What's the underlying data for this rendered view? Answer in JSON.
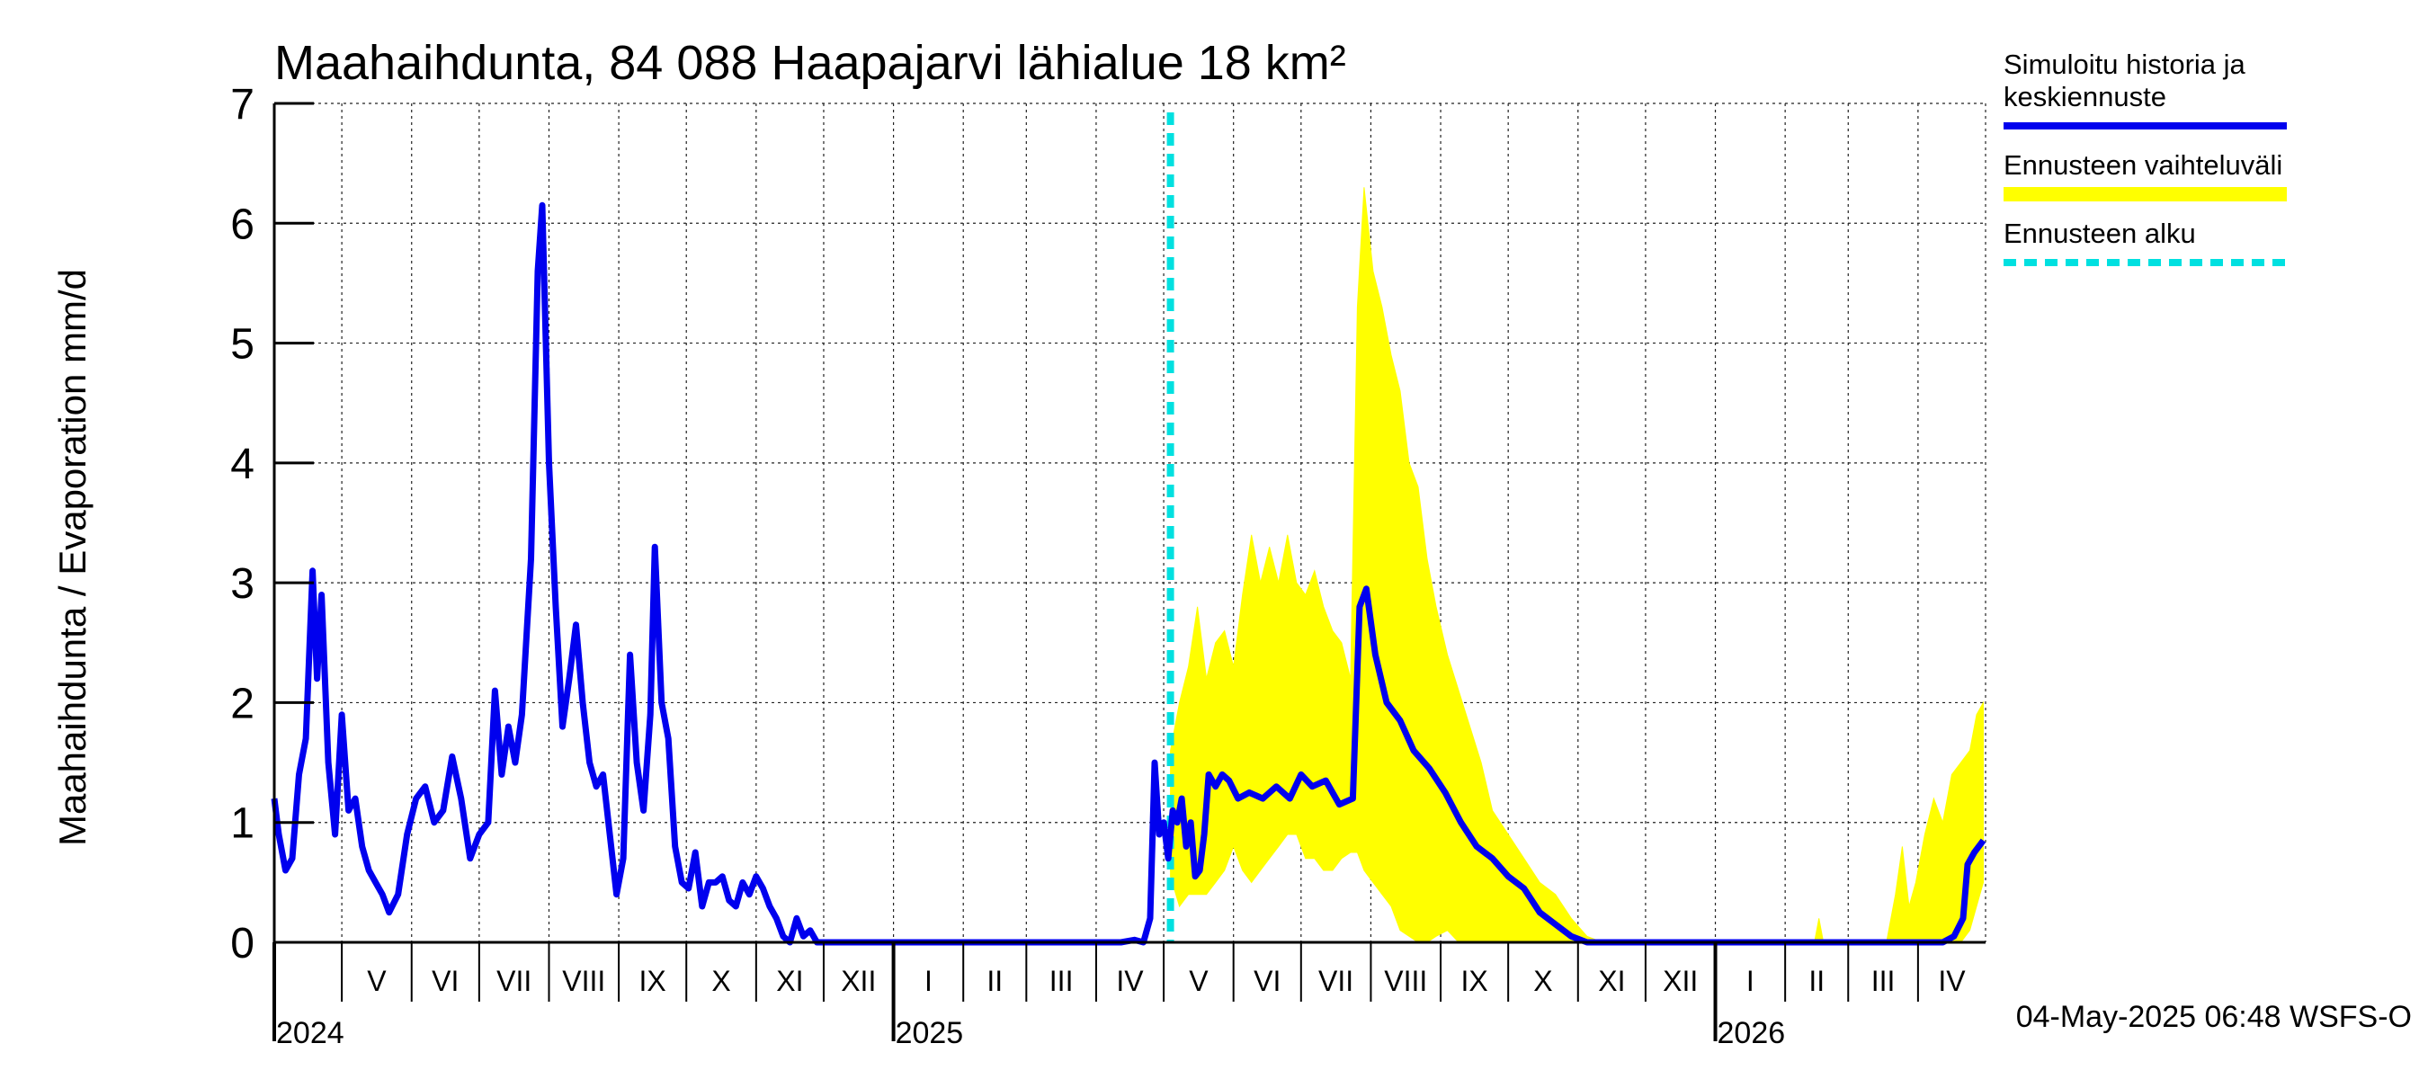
{
  "chart_data": {
    "type": "line",
    "title": "Maahaihdunta, 84 088 Haapajarvi lähialue 18 km²",
    "ylabel": "Maahaihdunta / Evaporation   mm/d",
    "ylim": [
      0,
      7
    ],
    "yticks": [
      "0",
      "1",
      "2",
      "3",
      "4",
      "5",
      "6",
      "7"
    ],
    "xlim": [
      "2024-04-01",
      "2026-05-01"
    ],
    "grid": true,
    "months": [
      {
        "label": "V",
        "start": "2024-05-01",
        "end": "2024-06-01"
      },
      {
        "label": "VI",
        "start": "2024-06-01",
        "end": "2024-07-01"
      },
      {
        "label": "VII",
        "start": "2024-07-01",
        "end": "2024-08-01"
      },
      {
        "label": "VIII",
        "start": "2024-08-01",
        "end": "2024-09-01"
      },
      {
        "label": "IX",
        "start": "2024-09-01",
        "end": "2024-10-01"
      },
      {
        "label": "X",
        "start": "2024-10-01",
        "end": "2024-11-01"
      },
      {
        "label": "XI",
        "start": "2024-11-01",
        "end": "2024-12-01"
      },
      {
        "label": "XII",
        "start": "2024-12-01",
        "end": "2025-01-01"
      },
      {
        "label": "I",
        "start": "2025-01-01",
        "end": "2025-02-01"
      },
      {
        "label": "II",
        "start": "2025-02-01",
        "end": "2025-03-01"
      },
      {
        "label": "III",
        "start": "2025-03-01",
        "end": "2025-04-01"
      },
      {
        "label": "IV",
        "start": "2025-04-01",
        "end": "2025-05-01"
      },
      {
        "label": "V",
        "start": "2025-05-01",
        "end": "2025-06-01"
      },
      {
        "label": "VI",
        "start": "2025-06-01",
        "end": "2025-07-01"
      },
      {
        "label": "VII",
        "start": "2025-07-01",
        "end": "2025-08-01"
      },
      {
        "label": "VIII",
        "start": "2025-08-01",
        "end": "2025-09-01"
      },
      {
        "label": "IX",
        "start": "2025-09-01",
        "end": "2025-10-01"
      },
      {
        "label": "X",
        "start": "2025-10-01",
        "end": "2025-11-01"
      },
      {
        "label": "XI",
        "start": "2025-11-01",
        "end": "2025-12-01"
      },
      {
        "label": "XII",
        "start": "2025-12-01",
        "end": "2026-01-01"
      },
      {
        "label": "I",
        "start": "2026-01-01",
        "end": "2026-02-01"
      },
      {
        "label": "II",
        "start": "2026-02-01",
        "end": "2026-03-01"
      },
      {
        "label": "III",
        "start": "2026-03-01",
        "end": "2026-04-01"
      },
      {
        "label": "IV",
        "start": "2026-04-01",
        "end": "2026-05-01"
      }
    ],
    "years": [
      {
        "label": "2024",
        "date": "2024-04-01"
      },
      {
        "label": "2025",
        "date": "2025-01-01"
      },
      {
        "label": "2026",
        "date": "2026-01-01"
      }
    ],
    "forecast_start": "2025-05-04",
    "series": [
      {
        "name": "Simuloitu historia ja keskiennuste",
        "color": "#0000ee",
        "points": [
          [
            "2024-04-01",
            1.2
          ],
          [
            "2024-04-03",
            0.9
          ],
          [
            "2024-04-06",
            0.6
          ],
          [
            "2024-04-09",
            0.7
          ],
          [
            "2024-04-12",
            1.4
          ],
          [
            "2024-04-15",
            1.7
          ],
          [
            "2024-04-18",
            3.1
          ],
          [
            "2024-04-20",
            2.2
          ],
          [
            "2024-04-22",
            2.9
          ],
          [
            "2024-04-25",
            1.5
          ],
          [
            "2024-04-28",
            0.9
          ],
          [
            "2024-05-01",
            1.9
          ],
          [
            "2024-05-04",
            1.1
          ],
          [
            "2024-05-07",
            1.2
          ],
          [
            "2024-05-10",
            0.8
          ],
          [
            "2024-05-13",
            0.6
          ],
          [
            "2024-05-16",
            0.5
          ],
          [
            "2024-05-19",
            0.4
          ],
          [
            "2024-05-22",
            0.25
          ],
          [
            "2024-05-26",
            0.4
          ],
          [
            "2024-05-30",
            0.9
          ],
          [
            "2024-06-03",
            1.2
          ],
          [
            "2024-06-07",
            1.3
          ],
          [
            "2024-06-11",
            1.0
          ],
          [
            "2024-06-15",
            1.1
          ],
          [
            "2024-06-19",
            1.55
          ],
          [
            "2024-06-23",
            1.2
          ],
          [
            "2024-06-27",
            0.7
          ],
          [
            "2024-07-01",
            0.9
          ],
          [
            "2024-07-05",
            1.0
          ],
          [
            "2024-07-08",
            2.1
          ],
          [
            "2024-07-11",
            1.4
          ],
          [
            "2024-07-14",
            1.8
          ],
          [
            "2024-07-17",
            1.5
          ],
          [
            "2024-07-20",
            1.9
          ],
          [
            "2024-07-24",
            3.2
          ],
          [
            "2024-07-27",
            5.6
          ],
          [
            "2024-07-29",
            6.15
          ],
          [
            "2024-08-01",
            4.0
          ],
          [
            "2024-08-04",
            2.8
          ],
          [
            "2024-08-07",
            1.8
          ],
          [
            "2024-08-10",
            2.2
          ],
          [
            "2024-08-13",
            2.65
          ],
          [
            "2024-08-16",
            2.0
          ],
          [
            "2024-08-19",
            1.5
          ],
          [
            "2024-08-22",
            1.3
          ],
          [
            "2024-08-25",
            1.4
          ],
          [
            "2024-08-28",
            0.9
          ],
          [
            "2024-08-31",
            0.4
          ],
          [
            "2024-09-03",
            0.7
          ],
          [
            "2024-09-06",
            2.4
          ],
          [
            "2024-09-09",
            1.5
          ],
          [
            "2024-09-12",
            1.1
          ],
          [
            "2024-09-15",
            1.9
          ],
          [
            "2024-09-17",
            3.3
          ],
          [
            "2024-09-20",
            2.0
          ],
          [
            "2024-09-23",
            1.7
          ],
          [
            "2024-09-26",
            0.8
          ],
          [
            "2024-09-29",
            0.5
          ],
          [
            "2024-10-02",
            0.45
          ],
          [
            "2024-10-05",
            0.75
          ],
          [
            "2024-10-08",
            0.3
          ],
          [
            "2024-10-11",
            0.5
          ],
          [
            "2024-10-14",
            0.5
          ],
          [
            "2024-10-17",
            0.55
          ],
          [
            "2024-10-20",
            0.35
          ],
          [
            "2024-10-23",
            0.3
          ],
          [
            "2024-10-26",
            0.5
          ],
          [
            "2024-10-29",
            0.4
          ],
          [
            "2024-11-01",
            0.55
          ],
          [
            "2024-11-04",
            0.45
          ],
          [
            "2024-11-07",
            0.3
          ],
          [
            "2024-11-10",
            0.2
          ],
          [
            "2024-11-13",
            0.05
          ],
          [
            "2024-11-16",
            0.0
          ],
          [
            "2024-11-19",
            0.2
          ],
          [
            "2024-11-22",
            0.05
          ],
          [
            "2024-11-25",
            0.1
          ],
          [
            "2024-11-28",
            0.0
          ],
          [
            "2025-04-12",
            0.0
          ],
          [
            "2025-04-18",
            0.02
          ],
          [
            "2025-04-22",
            0.0
          ],
          [
            "2025-04-25",
            0.2
          ],
          [
            "2025-04-27",
            1.5
          ],
          [
            "2025-04-29",
            0.9
          ],
          [
            "2025-05-01",
            1.0
          ],
          [
            "2025-05-03",
            0.7
          ],
          [
            "2025-05-05",
            1.1
          ],
          [
            "2025-05-07",
            1.0
          ],
          [
            "2025-05-09",
            1.2
          ],
          [
            "2025-05-11",
            0.8
          ],
          [
            "2025-05-13",
            1.0
          ],
          [
            "2025-05-15",
            0.55
          ],
          [
            "2025-05-17",
            0.6
          ],
          [
            "2025-05-19",
            0.9
          ],
          [
            "2025-05-21",
            1.4
          ],
          [
            "2025-05-24",
            1.3
          ],
          [
            "2025-05-27",
            1.4
          ],
          [
            "2025-05-30",
            1.35
          ],
          [
            "2025-06-03",
            1.2
          ],
          [
            "2025-06-08",
            1.25
          ],
          [
            "2025-06-14",
            1.2
          ],
          [
            "2025-06-20",
            1.3
          ],
          [
            "2025-06-26",
            1.2
          ],
          [
            "2025-07-01",
            1.4
          ],
          [
            "2025-07-06",
            1.3
          ],
          [
            "2025-07-12",
            1.35
          ],
          [
            "2025-07-18",
            1.15
          ],
          [
            "2025-07-24",
            1.2
          ],
          [
            "2025-07-27",
            2.8
          ],
          [
            "2025-07-30",
            2.95
          ],
          [
            "2025-08-03",
            2.4
          ],
          [
            "2025-08-08",
            2.0
          ],
          [
            "2025-08-14",
            1.85
          ],
          [
            "2025-08-20",
            1.6
          ],
          [
            "2025-08-27",
            1.45
          ],
          [
            "2025-09-03",
            1.25
          ],
          [
            "2025-09-10",
            1.0
          ],
          [
            "2025-09-17",
            0.8
          ],
          [
            "2025-09-24",
            0.7
          ],
          [
            "2025-10-01",
            0.55
          ],
          [
            "2025-10-08",
            0.45
          ],
          [
            "2025-10-15",
            0.25
          ],
          [
            "2025-10-22",
            0.15
          ],
          [
            "2025-10-29",
            0.05
          ],
          [
            "2025-11-05",
            0.0
          ],
          [
            "2026-04-12",
            0.0
          ],
          [
            "2026-04-17",
            0.05
          ],
          [
            "2026-04-21",
            0.2
          ],
          [
            "2026-04-23",
            0.65
          ],
          [
            "2026-04-26",
            0.75
          ],
          [
            "2026-04-30",
            0.85
          ]
        ]
      }
    ],
    "band": {
      "name": "Ennusteen vaihteluväli",
      "color": "#ffff00",
      "points": [
        [
          "2025-05-04",
          0.55,
          1.6
        ],
        [
          "2025-05-08",
          0.3,
          2.0
        ],
        [
          "2025-05-12",
          0.4,
          2.3
        ],
        [
          "2025-05-16",
          0.4,
          2.8
        ],
        [
          "2025-05-20",
          0.4,
          2.2
        ],
        [
          "2025-05-24",
          0.5,
          2.5
        ],
        [
          "2025-05-28",
          0.6,
          2.6
        ],
        [
          "2025-06-01",
          0.8,
          2.3
        ],
        [
          "2025-06-05",
          0.6,
          2.9
        ],
        [
          "2025-06-09",
          0.5,
          3.4
        ],
        [
          "2025-06-13",
          0.6,
          3.0
        ],
        [
          "2025-06-17",
          0.7,
          3.3
        ],
        [
          "2025-06-21",
          0.8,
          3.0
        ],
        [
          "2025-06-25",
          0.9,
          3.4
        ],
        [
          "2025-06-29",
          0.9,
          3.0
        ],
        [
          "2025-07-03",
          0.7,
          2.9
        ],
        [
          "2025-07-07",
          0.7,
          3.1
        ],
        [
          "2025-07-11",
          0.6,
          2.8
        ],
        [
          "2025-07-15",
          0.6,
          2.6
        ],
        [
          "2025-07-19",
          0.7,
          2.5
        ],
        [
          "2025-07-23",
          0.75,
          2.2
        ],
        [
          "2025-07-26",
          0.75,
          5.3
        ],
        [
          "2025-07-29",
          0.6,
          6.3
        ],
        [
          "2025-08-02",
          0.5,
          5.6
        ],
        [
          "2025-08-06",
          0.4,
          5.3
        ],
        [
          "2025-08-10",
          0.3,
          4.9
        ],
        [
          "2025-08-14",
          0.1,
          4.6
        ],
        [
          "2025-08-18",
          0.05,
          4.0
        ],
        [
          "2025-08-22",
          0.0,
          3.8
        ],
        [
          "2025-08-26",
          0.0,
          3.2
        ],
        [
          "2025-08-30",
          0.05,
          2.8
        ],
        [
          "2025-09-04",
          0.1,
          2.4
        ],
        [
          "2025-09-09",
          0.0,
          2.1
        ],
        [
          "2025-09-14",
          0.0,
          1.8
        ],
        [
          "2025-09-19",
          0.0,
          1.5
        ],
        [
          "2025-09-24",
          0.0,
          1.1
        ],
        [
          "2025-10-01",
          0.0,
          0.9
        ],
        [
          "2025-10-08",
          0.0,
          0.7
        ],
        [
          "2025-10-15",
          0.0,
          0.5
        ],
        [
          "2025-10-22",
          0.0,
          0.4
        ],
        [
          "2025-10-29",
          0.0,
          0.2
        ],
        [
          "2025-11-05",
          0.0,
          0.05
        ],
        [
          "2025-11-12",
          0.0,
          0.0
        ],
        [
          "2026-02-14",
          0.0,
          0.0
        ],
        [
          "2026-02-16",
          0.0,
          0.2
        ],
        [
          "2026-02-18",
          0.0,
          0.0
        ],
        [
          "2026-03-18",
          0.0,
          0.0
        ],
        [
          "2026-03-22",
          0.0,
          0.4
        ],
        [
          "2026-03-25",
          0.0,
          0.8
        ],
        [
          "2026-03-28",
          0.0,
          0.3
        ],
        [
          "2026-03-31",
          0.0,
          0.5
        ],
        [
          "2026-04-04",
          0.0,
          0.9
        ],
        [
          "2026-04-08",
          0.0,
          1.2
        ],
        [
          "2026-04-12",
          0.0,
          1.0
        ],
        [
          "2026-04-16",
          0.0,
          1.4
        ],
        [
          "2026-04-20",
          0.0,
          1.5
        ],
        [
          "2026-04-24",
          0.1,
          1.6
        ],
        [
          "2026-04-27",
          0.3,
          1.9
        ],
        [
          "2026-04-30",
          0.5,
          2.0
        ]
      ]
    },
    "legend": {
      "placement": "right",
      "items": [
        {
          "label": "Simuloitu historia ja keskiennuste",
          "lines": [
            "Simuloitu historia ja",
            "keskiennuste"
          ],
          "color": "#0000ee",
          "style": "solid"
        },
        {
          "label": "Ennusteen vaihteluväli",
          "lines": [
            "Ennusteen vaihteluväli"
          ],
          "color": "#ffff00",
          "style": "thick"
        },
        {
          "label": "Ennusteen alku",
          "lines": [
            "Ennusteen alku"
          ],
          "color": "#00e0e0",
          "style": "dashed"
        }
      ]
    },
    "footer": "04-May-2025 06:48 WSFS-O"
  }
}
